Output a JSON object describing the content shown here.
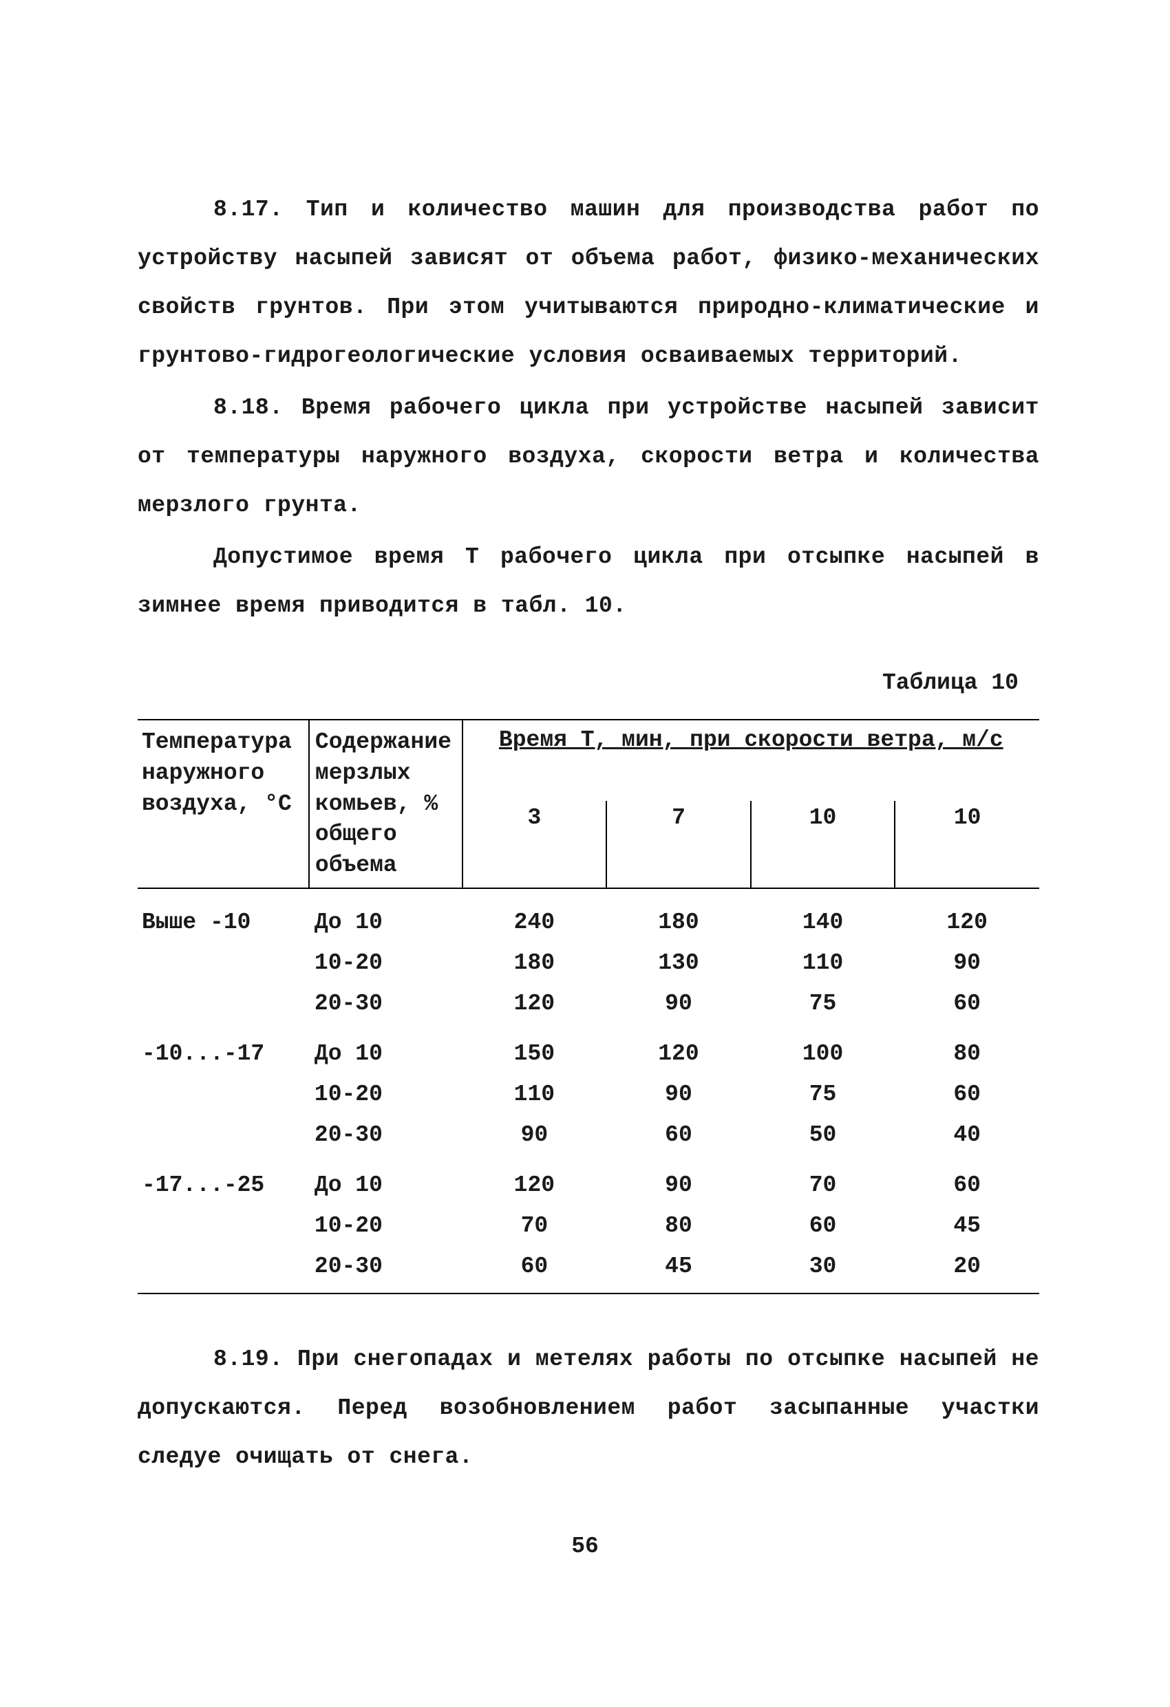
{
  "paragraphs": {
    "p817": "8.17. Тип и количество машин для производства работ по устройству насыпей зависят от объема работ, физико-механических свойств грунтов. При этом учитываются природно-климатические и грунтово-гидрогеологические условия осваиваемых территорий.",
    "p818": "8.18. Время рабочего цикла при устройстве насыпей зависит от температуры наружного воздуха, скорости ветра и количества мерзлого грунта.",
    "p818b": "Допустимое время Т рабочего цикла при отсыпке насыпей в зимнее время приводится в табл. 10.",
    "p819": "8.19. При снегопадах и метелях работы по отсыпке насыпей не допускаются. Перед возобновлением работ засыпанные участки следуе очищать от снега."
  },
  "table": {
    "type": "table",
    "caption": "Таблица 10",
    "header": {
      "temp_lines": [
        "Температура",
        "наружного",
        "воздуха, °С"
      ],
      "frost_lines": [
        "Содержание",
        "мерзлых",
        "комьев, %",
        "общего",
        "объема"
      ],
      "group": "Время Т, мин, при скорости ветра, м/с",
      "speeds": [
        "3",
        "7",
        "10",
        "10"
      ]
    },
    "rows": [
      {
        "temp": "Выше -10",
        "frost": "До 10",
        "values": [
          "240",
          "180",
          "140",
          "120"
        ]
      },
      {
        "temp": "",
        "frost": "10-20",
        "values": [
          "180",
          "130",
          "110",
          "90"
        ]
      },
      {
        "temp": "",
        "frost": "20-30",
        "values": [
          "120",
          "90",
          "75",
          "60"
        ]
      },
      {
        "temp": "-10...-17",
        "frost": "До 10",
        "values": [
          "150",
          "120",
          "100",
          "80"
        ]
      },
      {
        "temp": "",
        "frost": "10-20",
        "values": [
          "110",
          "90",
          "75",
          "60"
        ]
      },
      {
        "temp": "",
        "frost": "20-30",
        "values": [
          "90",
          "60",
          "50",
          "40"
        ]
      },
      {
        "temp": "-17...-25",
        "frost": "До 10",
        "values": [
          "120",
          "90",
          "70",
          "60"
        ]
      },
      {
        "temp": "",
        "frost": "10-20",
        "values": [
          "70",
          "80",
          "60",
          "45"
        ]
      },
      {
        "temp": "",
        "frost": "20-30",
        "values": [
          "60",
          "45",
          "30",
          "20"
        ]
      }
    ],
    "border_color": "#000000",
    "background_color": "#ffffff"
  },
  "page_number": "56",
  "text_color": "#1a1a1a",
  "font_family": "Courier New"
}
